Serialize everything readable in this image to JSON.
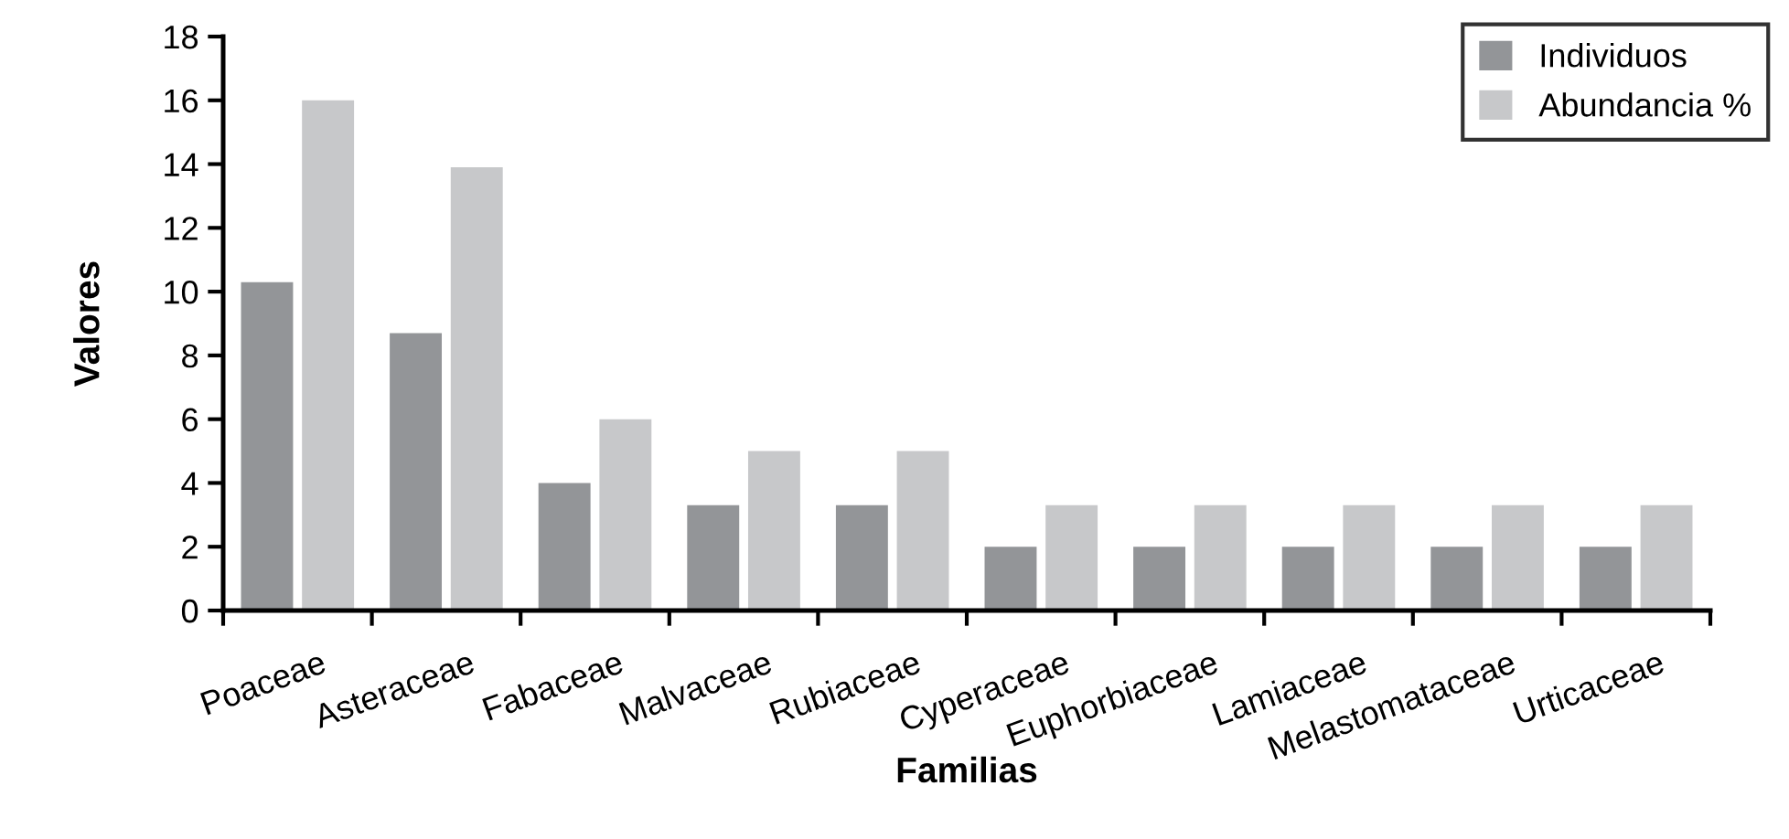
{
  "chart_data": {
    "type": "bar",
    "xlabel": "Familias",
    "ylabel": "Valores",
    "categories": [
      "Poaceae",
      "Asteraceae",
      "Fabaceae",
      "Malvaceae",
      "Rubiaceae",
      "Cyperaceae",
      "Euphorbiaceae",
      "Lamiaceae",
      "Melastomataceae",
      "Urticaceae"
    ],
    "series": [
      {
        "name": "Individuos",
        "color": "#939598",
        "values": [
          10.3,
          8.7,
          4.0,
          3.3,
          3.3,
          2.0,
          2.0,
          2.0,
          2.0,
          2.0
        ]
      },
      {
        "name": "Abundancia %",
        "color": "#c7c8ca",
        "values": [
          16.0,
          13.9,
          6.0,
          5.0,
          5.0,
          3.3,
          3.3,
          3.3,
          3.3,
          3.3
        ]
      }
    ],
    "ylim": [
      0,
      18
    ],
    "yticks": [
      0,
      2,
      4,
      6,
      8,
      10,
      12,
      14,
      16,
      18
    ],
    "grid": false,
    "legend": "top right"
  }
}
